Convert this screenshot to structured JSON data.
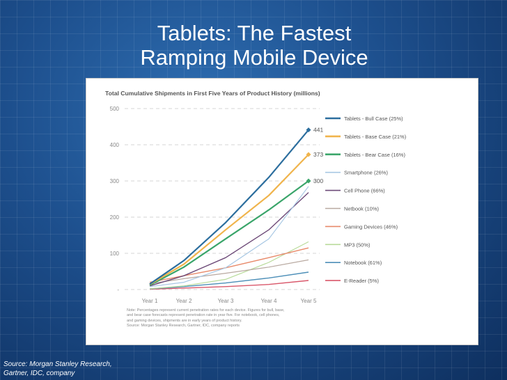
{
  "slide": {
    "title_line1": "Tablets: The Fastest",
    "title_line2": "Ramping Mobile Device",
    "source_label": "Source:",
    "source_text": "Morgan Stanley Research, Gartner, IDC, company"
  },
  "chart_data": {
    "type": "line",
    "title": "Total Cumulative Shipments in First Five Years of Product History (millions)",
    "xlabel": "",
    "ylabel": "",
    "categories": [
      "Year 1",
      "Year 2",
      "Year 3",
      "Year 4",
      "Year 5"
    ],
    "ylim": [
      0,
      500
    ],
    "yticks": [
      {
        "value": 0,
        "label": "-"
      },
      {
        "value": 100,
        "label": "100"
      },
      {
        "value": 200,
        "label": "200"
      },
      {
        "value": 300,
        "label": "300"
      },
      {
        "value": 400,
        "label": "400"
      },
      {
        "value": 500,
        "label": "500"
      }
    ],
    "grid": "dashed-horizontal",
    "legend_position": "right",
    "series": [
      {
        "name": "Tablets - Bull Case (25%)",
        "color": "#2c6e9e",
        "width": 2.2,
        "end_label": "441",
        "values": [
          15,
          80,
          185,
          310,
          441
        ]
      },
      {
        "name": "Tablets - Base Case (21%)",
        "color": "#f0b44c",
        "width": 2.2,
        "end_label": "373",
        "values": [
          14,
          70,
          165,
          260,
          373
        ]
      },
      {
        "name": "Tablets - Bear Case (16%)",
        "color": "#3aa56a",
        "width": 2.2,
        "end_label": "300",
        "values": [
          12,
          62,
          140,
          220,
          300
        ]
      },
      {
        "name": "Smartphone (26%)",
        "color": "#a7c7e3",
        "width": 1.2,
        "values": [
          8,
          20,
          60,
          140,
          285
        ]
      },
      {
        "name": "Cell Phone (66%)",
        "color": "#6d4a78",
        "width": 1.4,
        "values": [
          10,
          38,
          88,
          165,
          268
        ]
      },
      {
        "name": "Netbook (10%)",
        "color": "#b8a9a0",
        "width": 1.2,
        "values": [
          16,
          30,
          45,
          62,
          82
        ]
      },
      {
        "name": "Gaming Devices (46%)",
        "color": "#e88a6a",
        "width": 1.4,
        "values": [
          20,
          38,
          60,
          88,
          115
        ]
      },
      {
        "name": "MP3 (50%)",
        "color": "#b8db9a",
        "width": 1.2,
        "values": [
          2,
          10,
          28,
          75,
          132
        ]
      },
      {
        "name": "Notebook (61%)",
        "color": "#4d8fb8",
        "width": 1.4,
        "values": [
          2,
          8,
          18,
          32,
          48
        ]
      },
      {
        "name": "E-Reader (5%)",
        "color": "#d9576a",
        "width": 1.4,
        "values": [
          1,
          4,
          8,
          14,
          25
        ]
      }
    ],
    "notes": [
      "Note: Percentages represent current penetration rates for each device. Figures for bull, base,",
      "and bear case forecasts represent penetration rate in year five. For notebook, cell phones,",
      "and gaming devices, shipments are in early years of product history.",
      "Source: Morgan Stanley Research, Gartner, IDC, company reports"
    ]
  }
}
